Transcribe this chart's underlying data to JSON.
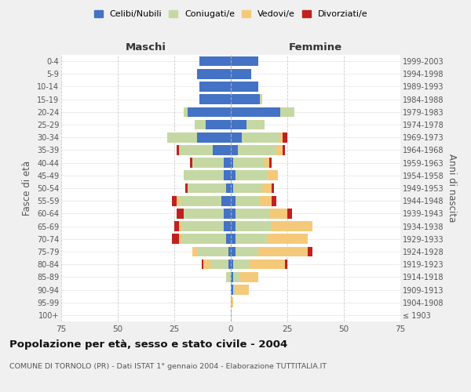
{
  "age_groups": [
    "100+",
    "95-99",
    "90-94",
    "85-89",
    "80-84",
    "75-79",
    "70-74",
    "65-69",
    "60-64",
    "55-59",
    "50-54",
    "45-49",
    "40-44",
    "35-39",
    "30-34",
    "25-29",
    "20-24",
    "15-19",
    "10-14",
    "5-9",
    "0-4"
  ],
  "birth_years": [
    "≤ 1903",
    "1904-1908",
    "1909-1913",
    "1914-1918",
    "1919-1923",
    "1924-1928",
    "1929-1933",
    "1934-1938",
    "1939-1943",
    "1944-1948",
    "1949-1953",
    "1954-1958",
    "1959-1963",
    "1964-1968",
    "1969-1973",
    "1974-1978",
    "1979-1983",
    "1984-1988",
    "1989-1993",
    "1994-1998",
    "1999-2003"
  ],
  "male": {
    "celibi": [
      0,
      0,
      0,
      0,
      1,
      1,
      2,
      3,
      3,
      4,
      2,
      3,
      3,
      8,
      15,
      11,
      19,
      14,
      14,
      15,
      14
    ],
    "coniugati": [
      0,
      0,
      0,
      2,
      8,
      14,
      20,
      19,
      18,
      19,
      17,
      18,
      14,
      15,
      13,
      5,
      2,
      0,
      0,
      0,
      0
    ],
    "vedovi": [
      0,
      0,
      0,
      0,
      3,
      2,
      1,
      1,
      0,
      1,
      0,
      0,
      0,
      0,
      0,
      0,
      0,
      0,
      0,
      0,
      0
    ],
    "divorziati": [
      0,
      0,
      0,
      0,
      1,
      0,
      3,
      2,
      3,
      2,
      1,
      0,
      1,
      1,
      0,
      0,
      0,
      0,
      0,
      0,
      0
    ]
  },
  "female": {
    "nubili": [
      0,
      0,
      1,
      1,
      1,
      2,
      2,
      2,
      2,
      2,
      1,
      2,
      1,
      3,
      5,
      7,
      22,
      13,
      12,
      9,
      12
    ],
    "coniugate": [
      0,
      0,
      1,
      3,
      7,
      10,
      14,
      16,
      15,
      11,
      13,
      14,
      14,
      17,
      17,
      8,
      6,
      1,
      0,
      0,
      0
    ],
    "vedove": [
      0,
      1,
      6,
      8,
      16,
      22,
      18,
      18,
      8,
      5,
      4,
      5,
      2,
      3,
      1,
      0,
      0,
      0,
      0,
      0,
      0
    ],
    "divorziate": [
      0,
      0,
      0,
      0,
      1,
      2,
      0,
      0,
      2,
      2,
      1,
      0,
      1,
      1,
      2,
      0,
      0,
      0,
      0,
      0,
      0
    ]
  },
  "colors": {
    "celibi_nubili": "#4472c4",
    "coniugati_e": "#c5d8a4",
    "vedovi_e": "#f5c97a",
    "divorziati_e": "#c0211f"
  },
  "xlim": 75,
  "title": "Popolazione per età, sesso e stato civile - 2004",
  "subtitle": "COMUNE DI TORNOLO (PR) - Dati ISTAT 1° gennaio 2004 - Elaborazione TUTTITALIA.IT",
  "ylabel_left": "Fasce di età",
  "ylabel_right": "Anni di nascita",
  "xlabel_male": "Maschi",
  "xlabel_female": "Femmine",
  "bg_color": "#f0f0f0",
  "plot_bg_color": "#ffffff",
  "legend_labels": [
    "Celibi/Nubili",
    "Coniugati/e",
    "Vedovi/e",
    "Divorziati/e"
  ]
}
